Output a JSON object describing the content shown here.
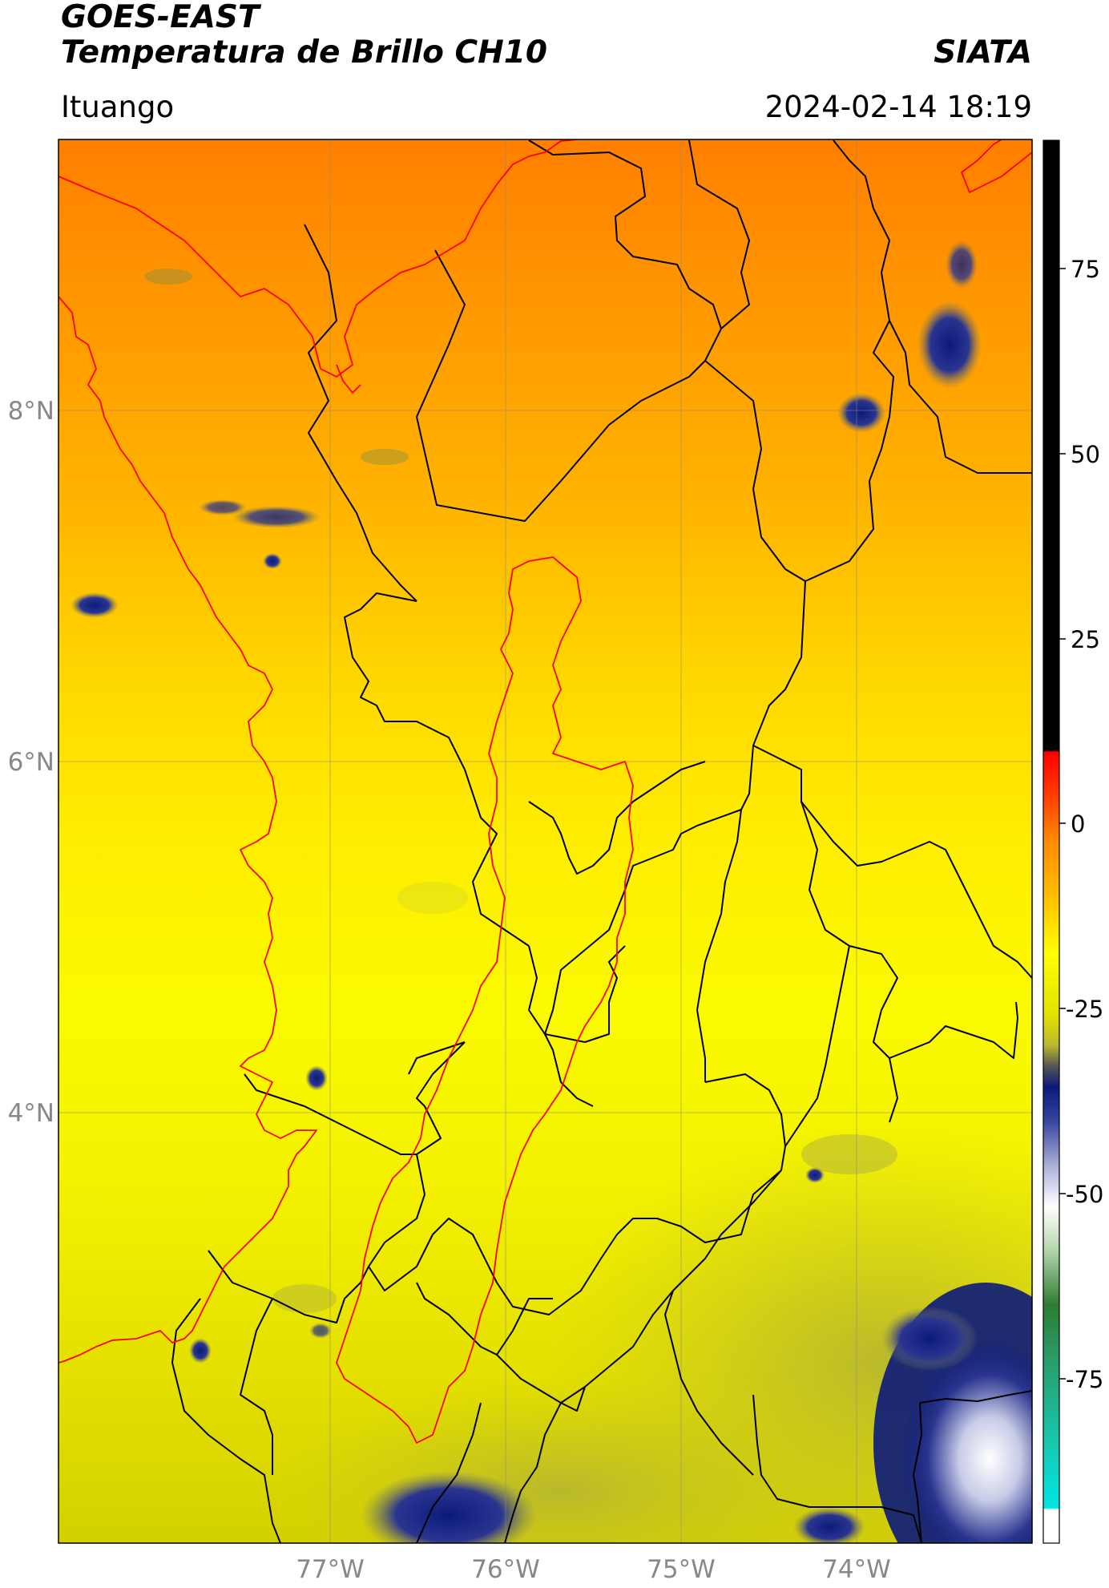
{
  "header": {
    "satellite": "GOES-EAST",
    "product": "Temperatura de Brillo CH10",
    "brand": "SIATA",
    "region": "Ituango",
    "timestamp": "2024-02-14 18:19"
  },
  "map": {
    "lat_labels": [
      "8°N",
      "6°N",
      "4°N"
    ],
    "lon_labels": [
      "77°W",
      "76°W",
      "75°W",
      "74°W"
    ],
    "features": [
      "brightness-temperature-field",
      "department-boundaries",
      "antioquia-highlight",
      "coastline"
    ]
  },
  "colorbar": {
    "ticks": [
      "75",
      "50",
      "25",
      "0",
      "-25",
      "-50",
      "-75"
    ],
    "colors": {
      "top": "#000000",
      "red": "#ff0000",
      "orange": "#ff8c00",
      "yellow": "#ffff00",
      "olive": "#bdbd30",
      "navy": "#0b1a7a",
      "white": "#ffffff",
      "green": "#2e7d32",
      "cyan": "#00e5e5"
    }
  }
}
